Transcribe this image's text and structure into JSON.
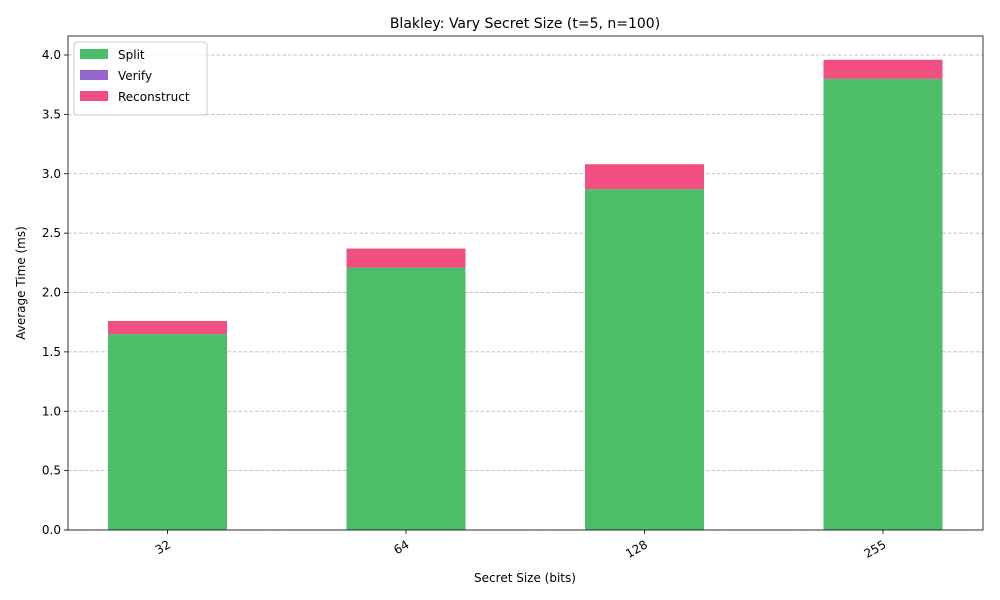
{
  "chart_data": {
    "type": "bar",
    "stacked": true,
    "title": "Blakley: Vary Secret Size (t=5, n=100)",
    "xlabel": "Secret Size (bits)",
    "ylabel": "Average Time (ms)",
    "categories": [
      "32",
      "64",
      "128",
      "255"
    ],
    "ylim": [
      0,
      4.16
    ],
    "yticks": [
      0.0,
      0.5,
      1.0,
      1.5,
      2.0,
      2.5,
      3.0,
      3.5,
      4.0
    ],
    "ytick_labels": [
      "0.0",
      "0.5",
      "1.0",
      "1.5",
      "2.0",
      "2.5",
      "3.0",
      "3.5",
      "4.0"
    ],
    "grid": "y-dashed",
    "legend_position": "top-left",
    "series": [
      {
        "name": "Split",
        "color": "#4dbd6a",
        "values": [
          1.65,
          2.21,
          2.87,
          3.8
        ]
      },
      {
        "name": "Verify",
        "color": "#9467cf",
        "values": [
          0.0,
          0.0,
          0.0,
          0.0
        ]
      },
      {
        "name": "Reconstruct",
        "color": "#f04f80",
        "values": [
          0.11,
          0.16,
          0.21,
          0.16
        ]
      }
    ]
  }
}
